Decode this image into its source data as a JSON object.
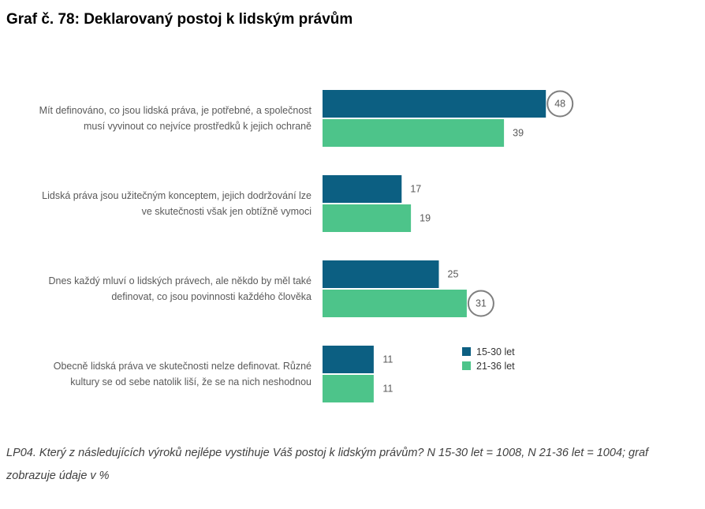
{
  "title": "Graf č. 78: Deklarovaný postoj k lidským právům",
  "note": "LP04. Který z následujících výroků nejlépe vystihuje Váš postoj k lidským právům? N 15-30 let = 1008, N 21-36 let = 1004; graf zobrazuje údaje v %",
  "chart_data": {
    "type": "bar",
    "orientation": "horizontal",
    "title": "Graf č. 78: Deklarovaný postoj k lidským právům",
    "categories": [
      [
        "Mít definováno, co jsou lidská práva, je potřebné, a společnost",
        "musí vyvinout co nejvíce prostředků k jejich ochraně"
      ],
      [
        "Lidská práva jsou užitečným konceptem, jejich dodržování lze",
        "ve skutečnosti však jen obtížně vymoci"
      ],
      [
        "Dnes každý mluví o lidských právech, ale někdo by měl také",
        "definovat, co jsou povinnosti každého člověka"
      ],
      [
        "Obecně lidská práva ve skutečnosti nelze definovat. Různé",
        "kultury se od sebe natolik liší, že se na nich neshodnou"
      ]
    ],
    "series": [
      {
        "name": "15-30 let",
        "color": "#0c5f82",
        "values": [
          48,
          17,
          25,
          11
        ],
        "highlight": [
          true,
          false,
          false,
          false
        ]
      },
      {
        "name": "21-36 let",
        "color": "#4dc48a",
        "values": [
          39,
          19,
          31,
          11
        ],
        "highlight": [
          false,
          false,
          true,
          false
        ]
      }
    ],
    "legend_position": "right",
    "grid": false,
    "xlabel": "",
    "ylabel": ""
  }
}
